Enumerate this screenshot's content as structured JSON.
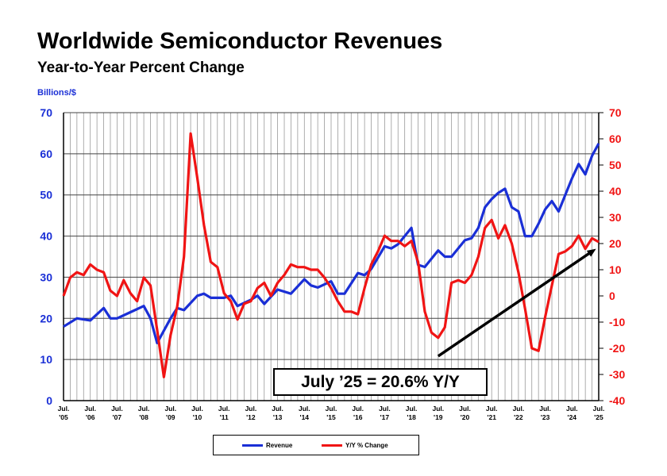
{
  "chart_data": {
    "type": "line",
    "title": "Worldwide Semiconductor Revenues",
    "subtitle": "Year-to-Year Percent Change",
    "ylabel": "Billions/$",
    "ylim_left": [
      0,
      70
    ],
    "ylim_right": [
      -40,
      70
    ],
    "yticks_left": [
      "0",
      "10",
      "20",
      "30",
      "40",
      "50",
      "60",
      "70"
    ],
    "yticks_right": [
      "-40",
      "-30",
      "-20",
      "-10",
      "0",
      "10",
      "20",
      "30",
      "40",
      "50",
      "60",
      "70"
    ],
    "xticks": [
      [
        "Jul.",
        "'05"
      ],
      [
        "Jul.",
        "'06"
      ],
      [
        "Jul.",
        "'07"
      ],
      [
        "Jul.",
        "'08"
      ],
      [
        "Jul.",
        "'09"
      ],
      [
        "Jul.",
        "'10"
      ],
      [
        "Jul.",
        "'11"
      ],
      [
        "Jul.",
        "'12"
      ],
      [
        "Jul.",
        "'13"
      ],
      [
        "Jul.",
        "'14"
      ],
      [
        "Jul.",
        "'15"
      ],
      [
        "Jul.",
        "'16"
      ],
      [
        "Jul.",
        "'17"
      ],
      [
        "Jul.",
        "'18"
      ],
      [
        "Jul.",
        "'19"
      ],
      [
        "Jul.",
        "'20"
      ],
      [
        "Jul.",
        "'21"
      ],
      [
        "Jul.",
        "'22"
      ],
      [
        "Jul.",
        "'23"
      ],
      [
        "Jul.",
        "'24"
      ],
      [
        "Jul.",
        "'25"
      ]
    ],
    "grid": true,
    "legend_position": "bottom",
    "annotation": "July ’25 = 20.6% Y/Y",
    "trend_arrow": {
      "from": [
        2019.5,
        -23
      ],
      "to": [
        2025.4,
        18
      ]
    },
    "series": [
      {
        "name": "Revenue",
        "axis": "left",
        "color": "#1a2fd6",
        "x": [
          2005.5,
          2006.0,
          2006.5,
          2007.0,
          2007.25,
          2007.5,
          2008.0,
          2008.5,
          2008.75,
          2009.0,
          2009.5,
          2009.75,
          2010.0,
          2010.5,
          2010.75,
          2011.0,
          2011.5,
          2011.75,
          2012.0,
          2012.5,
          2012.75,
          2013.0,
          2013.5,
          2014.0,
          2014.5,
          2014.75,
          2015.0,
          2015.5,
          2015.75,
          2016.0,
          2016.5,
          2016.75,
          2017.0,
          2017.5,
          2017.75,
          2018.0,
          2018.5,
          2018.75,
          2019.0,
          2019.5,
          2019.75,
          2020.0,
          2020.5,
          2020.75,
          2021.0,
          2021.25,
          2021.5,
          2021.75,
          2022.0,
          2022.25,
          2022.5,
          2022.75,
          2023.0,
          2023.25,
          2023.5,
          2023.75,
          2024.0,
          2024.25,
          2024.5,
          2024.75,
          2025.0,
          2025.25,
          2025.5
        ],
        "values": [
          18,
          20,
          19.5,
          22.5,
          20,
          20,
          21.5,
          23,
          20,
          14,
          20,
          22.5,
          22,
          25.5,
          26,
          25,
          25,
          25.5,
          23,
          24.5,
          25.5,
          23.5,
          27,
          26,
          29.5,
          28,
          27.5,
          29,
          26,
          26,
          31,
          30.5,
          32,
          37.5,
          37,
          38,
          42,
          33,
          32.5,
          36.5,
          35,
          35,
          39,
          39.5,
          42,
          47,
          49,
          50.5,
          51.5,
          47,
          46,
          40,
          40,
          43,
          46.5,
          48.5,
          46,
          50,
          54,
          57.5,
          55,
          59.5,
          62.5
        ]
      },
      {
        "name": "Y/Y % Change",
        "axis": "right",
        "color": "#f01414",
        "x": [
          2005.5,
          2005.75,
          2006.0,
          2006.25,
          2006.5,
          2006.75,
          2007.0,
          2007.25,
          2007.5,
          2007.75,
          2008.0,
          2008.25,
          2008.5,
          2008.75,
          2009.0,
          2009.25,
          2009.5,
          2009.75,
          2010.0,
          2010.25,
          2010.5,
          2010.75,
          2011.0,
          2011.25,
          2011.5,
          2011.75,
          2012.0,
          2012.25,
          2012.5,
          2012.75,
          2013.0,
          2013.25,
          2013.5,
          2013.75,
          2014.0,
          2014.25,
          2014.5,
          2014.75,
          2015.0,
          2015.25,
          2015.5,
          2015.75,
          2016.0,
          2016.25,
          2016.5,
          2016.75,
          2017.0,
          2017.25,
          2017.5,
          2017.75,
          2018.0,
          2018.25,
          2018.5,
          2018.75,
          2019.0,
          2019.25,
          2019.5,
          2019.75,
          2020.0,
          2020.25,
          2020.5,
          2020.75,
          2021.0,
          2021.25,
          2021.5,
          2021.75,
          2022.0,
          2022.25,
          2022.5,
          2022.75,
          2023.0,
          2023.25,
          2023.5,
          2023.75,
          2024.0,
          2024.25,
          2024.5,
          2024.75,
          2025.0,
          2025.25,
          2025.5
        ],
        "values": [
          0,
          7,
          9,
          8,
          12,
          10,
          9,
          2,
          0,
          6,
          1,
          -2,
          7,
          4,
          -13,
          -31,
          -15,
          -4,
          15,
          62,
          45,
          27,
          13,
          11,
          1,
          -2,
          -9,
          -3,
          -2,
          3,
          5,
          0,
          5,
          8,
          12,
          11,
          11,
          10,
          10,
          7,
          3,
          -2,
          -6,
          -6,
          -7,
          3,
          12,
          17,
          23,
          21,
          21,
          19,
          21,
          13,
          -6,
          -14,
          -16,
          -12,
          5,
          6,
          5,
          8,
          15,
          26,
          29,
          22,
          27,
          20,
          9,
          -5,
          -20,
          -21,
          -8,
          4,
          16,
          17,
          19,
          23,
          18,
          22,
          20.6
        ]
      }
    ]
  }
}
